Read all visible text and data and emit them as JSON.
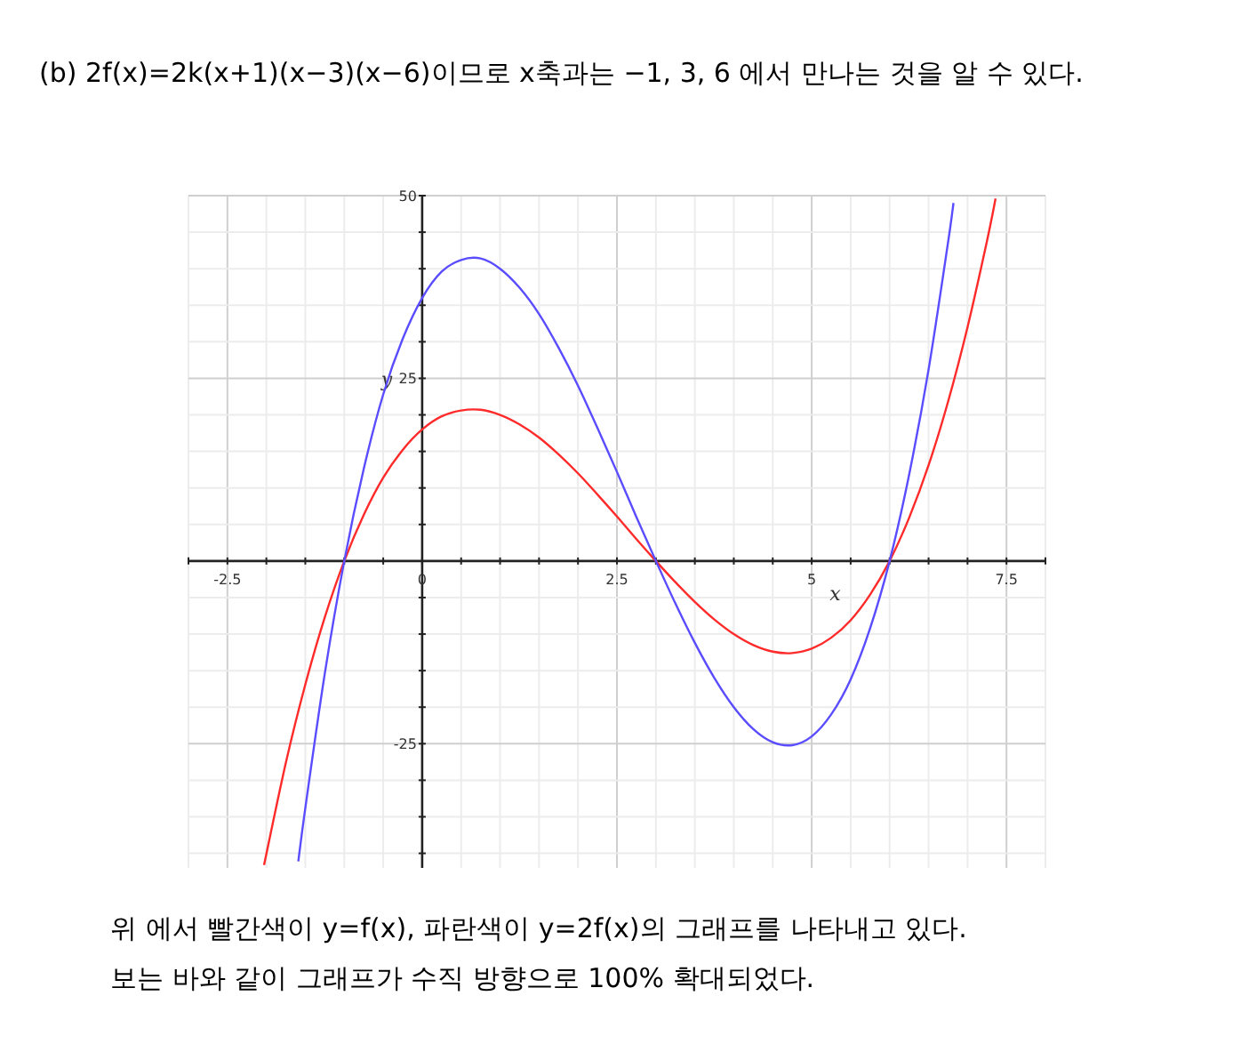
{
  "chart_data": {
    "type": "line",
    "title": "(b) 2f(x)=2k(x+1)(x−3)(x−6)이므로 x축과는 −1, 3, 6 에서 만나는 것을 알 수 있다.",
    "xlabel": "x",
    "ylabel": "y",
    "annotations": [
      "위 에서 빨간색이 y=f(x), 파란색이 y=2f(x)의 그래프를 나타내고 있다.",
      "보는 바와 같이 그래프가 수직 방향으로 100% 확대되었다."
    ],
    "xlim": [
      -3,
      8
    ],
    "ylim": [
      -42,
      50
    ],
    "xticks": [
      {
        "value": -3,
        "label": null
      },
      "-2.5",
      {
        "value": -2,
        "label": null
      },
      {
        "value": -1.5,
        "label": null
      },
      {
        "value": -1,
        "label": null
      },
      {
        "value": -0.5,
        "label": null
      },
      0,
      {
        "value": 0.5,
        "label": null
      },
      {
        "value": 1,
        "label": null
      },
      {
        "value": 1.5,
        "label": null
      },
      {
        "value": 2,
        "label": null
      },
      2.5,
      {
        "value": 3,
        "label": null
      },
      {
        "value": 3.5,
        "label": null
      },
      {
        "value": 4,
        "label": null
      },
      {
        "value": 4.5,
        "label": null
      },
      5,
      {
        "value": 5.5,
        "label": null
      },
      {
        "value": 6,
        "label": null
      },
      {
        "value": 6.5,
        "label": null
      },
      {
        "value": 7,
        "label": null
      },
      7.5,
      {
        "value": 8,
        "label": null
      }
    ],
    "yticks": [
      {
        "value": -40,
        "label": null
      },
      {
        "value": -35,
        "label": null
      },
      {
        "value": -30,
        "label": null
      },
      -25,
      {
        "value": -20,
        "label": null
      },
      {
        "value": -15,
        "label": null
      },
      {
        "value": -10,
        "label": null
      },
      {
        "value": -5,
        "label": null
      },
      {
        "value": 5,
        "label": null
      },
      {
        "value": 10,
        "label": null
      },
      {
        "value": 15,
        "label": null
      },
      {
        "value": 20,
        "label": null
      },
      25,
      {
        "value": 30,
        "label": null
      },
      {
        "value": 35,
        "label": null
      },
      {
        "value": 40,
        "label": null
      },
      {
        "value": 45,
        "label": null
      },
      50
    ],
    "grid": true,
    "series": [
      {
        "color": "#ff2a2a",
        "x": [
          -2.03,
          -1.75,
          -1.5,
          -1.25,
          -1,
          -0.75,
          -0.5,
          -0.25,
          0,
          0.25,
          0.5,
          0.75,
          1,
          1.25,
          1.5,
          1.75,
          2,
          2.25,
          2.5,
          2.75,
          3,
          3.25,
          3.5,
          3.75,
          4,
          4.25,
          4.5,
          4.75,
          5,
          5.25,
          5.5,
          5.75,
          6,
          6.25,
          6.5,
          6.75,
          7,
          7.25,
          7.36
        ],
        "values": [
          -41.6,
          -27.6,
          -16.9,
          -7.7,
          0,
          6.3,
          11.4,
          15.2,
          18,
          19.8,
          20.6,
          20.7,
          20,
          18.7,
          16.9,
          14.6,
          12,
          9.1,
          6.1,
          3.0,
          0,
          -2.9,
          -5.6,
          -8.0,
          -10,
          -11.5,
          -12.4,
          -12.6,
          -12,
          -10.5,
          -8.1,
          -4.6,
          0,
          5.9,
          13.1,
          21.8,
          32,
          43.8,
          49.6
        ]
      },
      {
        "color": "#5a4cff",
        "x": [
          -1.59,
          -1.5,
          -1.25,
          -1,
          -0.75,
          -0.5,
          -0.25,
          0,
          0.25,
          0.5,
          0.75,
          1,
          1.25,
          1.5,
          1.75,
          2,
          2.25,
          2.5,
          2.75,
          3,
          3.25,
          3.5,
          3.75,
          4,
          4.25,
          4.5,
          4.75,
          5,
          5.25,
          5.5,
          5.75,
          6,
          6.25,
          6.5,
          6.75,
          6.82
        ],
        "values": [
          -41.1,
          -33.8,
          -15.4,
          0,
          12.6,
          22.8,
          30.4,
          36,
          39.6,
          41.2,
          41.4,
          40,
          37.4,
          33.8,
          29.2,
          24,
          18.2,
          12.2,
          6.0,
          0,
          -5.8,
          -11.2,
          -16,
          -20,
          -23,
          -24.8,
          -25.2,
          -24,
          -21,
          -16.2,
          -9.2,
          0,
          11.8,
          26.2,
          43.6,
          49.0
        ]
      }
    ]
  }
}
